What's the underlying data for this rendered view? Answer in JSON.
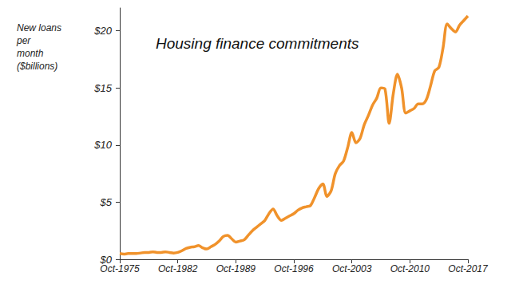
{
  "chart_data": {
    "type": "line",
    "title": "Housing finance commitments",
    "y_label": "New loans\nper\nmonth\n($billions)",
    "categories": [
      "Oct-1975",
      null,
      null,
      null,
      null,
      null,
      null,
      null,
      null,
      null,
      null,
      null,
      null,
      null,
      "Oct-1982",
      null,
      null,
      null,
      null,
      null,
      null,
      null,
      null,
      null,
      null,
      null,
      null,
      null,
      "Oct-1989",
      null,
      null,
      null,
      null,
      null,
      null,
      null,
      null,
      null,
      null,
      null,
      null,
      null,
      "Oct-1996",
      null,
      null,
      null,
      null,
      null,
      null,
      null,
      null,
      null,
      null,
      null,
      null,
      null,
      "Oct-2003",
      null,
      null,
      null,
      null,
      null,
      null,
      null,
      null,
      null,
      null,
      null,
      null,
      null,
      "Oct-2010",
      null,
      null,
      null,
      null,
      null,
      null,
      null,
      null,
      null,
      null,
      null,
      null,
      null,
      "Oct-2017"
    ],
    "values": [
      0.5,
      0.45,
      0.5,
      0.5,
      0.5,
      0.55,
      0.6,
      0.6,
      0.65,
      0.6,
      0.6,
      0.65,
      0.6,
      0.55,
      0.6,
      0.75,
      0.95,
      1.05,
      1.1,
      1.2,
      1.0,
      0.9,
      1.1,
      1.3,
      1.6,
      2.0,
      2.1,
      1.8,
      1.5,
      1.6,
      1.7,
      2.1,
      2.5,
      2.8,
      3.1,
      3.4,
      4.0,
      4.4,
      3.8,
      3.4,
      3.6,
      3.8,
      4.0,
      4.3,
      4.5,
      4.6,
      4.7,
      5.4,
      6.2,
      6.6,
      5.5,
      6.0,
      7.5,
      8.2,
      8.6,
      9.8,
      11.1,
      10.2,
      10.6,
      11.8,
      12.6,
      13.5,
      14.1,
      15.0,
      14.9,
      11.9,
      14.5,
      16.2,
      15.0,
      12.8,
      13.0,
      13.2,
      13.6,
      13.6,
      14.0,
      15.2,
      16.5,
      16.8,
      18.5,
      20.6,
      20.2,
      19.9,
      20.5,
      20.9,
      21.3
    ],
    "color": "#f0922b",
    "ylim": [
      0,
      22
    ],
    "yticks": [
      {
        "value": 0,
        "label": "$0"
      },
      {
        "value": 5,
        "label": "$5"
      },
      {
        "value": 10,
        "label": "$10"
      },
      {
        "value": 15,
        "label": "$15"
      },
      {
        "value": 20,
        "label": "$20"
      }
    ],
    "grid": false
  }
}
